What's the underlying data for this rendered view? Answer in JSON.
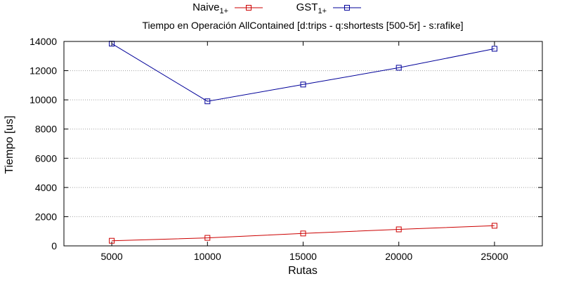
{
  "chart_data": {
    "type": "line",
    "title": "Tiempo en Operación AllContained [d:trips - q:shortests [500-5r] - s:rafike]",
    "xlabel": "Rutas",
    "ylabel": "Tiempo [us]",
    "x": [
      5000,
      10000,
      15000,
      20000,
      25000
    ],
    "xlim": [
      2500,
      27500
    ],
    "ylim": [
      0,
      14000
    ],
    "xticks": [
      "5000",
      "10000",
      "15000",
      "20000",
      "25000"
    ],
    "yticks": [
      "0",
      "2000",
      "4000",
      "6000",
      "8000",
      "10000",
      "12000",
      "14000"
    ],
    "grid": true,
    "legend_position": "top-center",
    "series": [
      {
        "name": "Naive",
        "name_sub": "1+",
        "color": "#cc0000",
        "marker": "square",
        "values": [
          350,
          550,
          850,
          1130,
          1380
        ]
      },
      {
        "name": "GST",
        "name_sub": "1+",
        "color": "#000099",
        "marker": "square",
        "values": [
          13850,
          9900,
          11050,
          12200,
          13500
        ]
      }
    ]
  }
}
